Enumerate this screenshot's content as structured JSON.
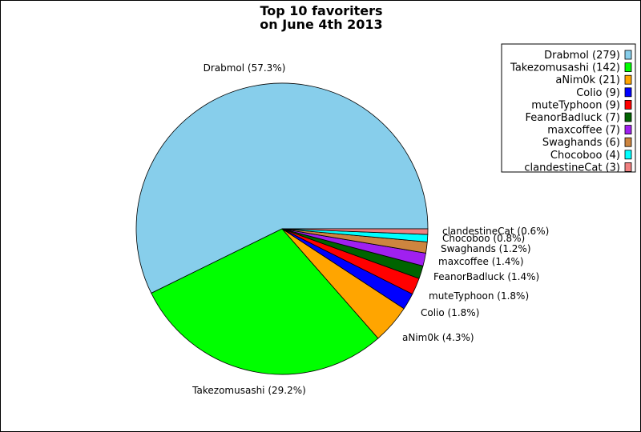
{
  "chart_data": {
    "type": "pie",
    "title": [
      "Top 10 favoriters",
      "on June 4th 2013"
    ],
    "legend_placement": "top-right",
    "slices": [
      {
        "name": "Drabmol",
        "value": 279,
        "label": "Drabmol (57.3%)",
        "legend": "Drabmol (279)",
        "color": "#87ceeb"
      },
      {
        "name": "Takezomusashi",
        "value": 142,
        "label": "Takezomusashi (29.2%)",
        "legend": "Takezomusashi (142)",
        "color": "#00ff00"
      },
      {
        "name": "aNim0k",
        "value": 21,
        "label": "aNim0k (4.3%)",
        "legend": "aNim0k (21)",
        "color": "#ffa500"
      },
      {
        "name": "Colio",
        "value": 9,
        "label": "Colio (1.8%)",
        "legend": "Colio (9)",
        "color": "#0000ff"
      },
      {
        "name": "muteTyphoon",
        "value": 9,
        "label": "muteTyphoon (1.8%)",
        "legend": "muteTyphoon (9)",
        "color": "#ff0000"
      },
      {
        "name": "FeanorBadluck",
        "value": 7,
        "label": "FeanorBadluck (1.4%)",
        "legend": "FeanorBadluck (7)",
        "color": "#006400"
      },
      {
        "name": "maxcoffee",
        "value": 7,
        "label": "maxcoffee (1.4%)",
        "legend": "maxcoffee (7)",
        "color": "#a020f0"
      },
      {
        "name": "Swaghands",
        "value": 6,
        "label": "Swaghands (1.2%)",
        "legend": "Swaghands (6)",
        "color": "#cd853f"
      },
      {
        "name": "Chocoboo",
        "value": 4,
        "label": "Chocoboo (0.8%)",
        "legend": "Chocoboo (4)",
        "color": "#00ffff"
      },
      {
        "name": "clandestineCat",
        "value": 3,
        "label": "clandestineCat (0.6%)",
        "legend": "clandestineCat (3)",
        "color": "#f08080"
      }
    ]
  }
}
